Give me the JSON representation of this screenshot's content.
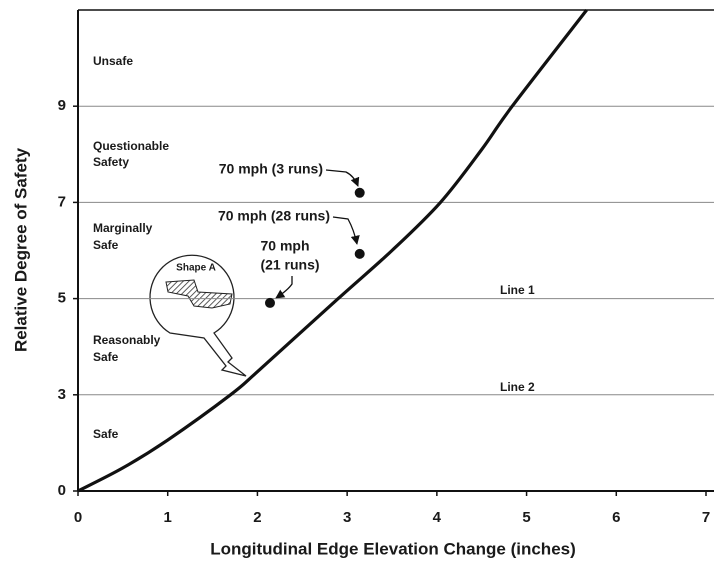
{
  "chart_data": {
    "type": "line",
    "xlabel": "Longitudinal Edge Elevation Change (inches)",
    "ylabel": "Relative Degree of Safety",
    "x": [
      0,
      0.5,
      1,
      1.7,
      2,
      2.9,
      3.5,
      4.04,
      4.5,
      4.84,
      5.67
    ],
    "values": [
      0,
      0.72,
      1.59,
      3,
      3.48,
      5,
      6.0,
      7,
      8.1,
      9,
      11
    ],
    "color": "#111111",
    "xlim": [
      0,
      7
    ],
    "xticks": [
      0,
      1,
      2,
      3,
      4,
      5,
      6,
      7
    ],
    "ylim": [
      0,
      11
    ],
    "yticks": [
      0,
      3,
      5,
      7,
      9
    ],
    "grid": true,
    "points_x": [
      3.14,
      3.14,
      2.14
    ],
    "points_y": [
      7.2,
      5.93,
      4.91
    ],
    "point_labels": [
      [
        "70 mph (3 runs)"
      ],
      [
        "70 mph (28 runs)"
      ],
      [
        "70 mph",
        "(21 runs)"
      ]
    ],
    "region_labels": [
      [
        "Unsafe"
      ],
      [
        "Questionable",
        "Safety"
      ],
      [
        "Marginally",
        "Safe"
      ],
      [
        "Reasonably",
        "Safe"
      ],
      [
        "Safe"
      ]
    ],
    "line_labels": [
      "Line 1",
      "Line 2"
    ],
    "callout": "Shape A"
  }
}
